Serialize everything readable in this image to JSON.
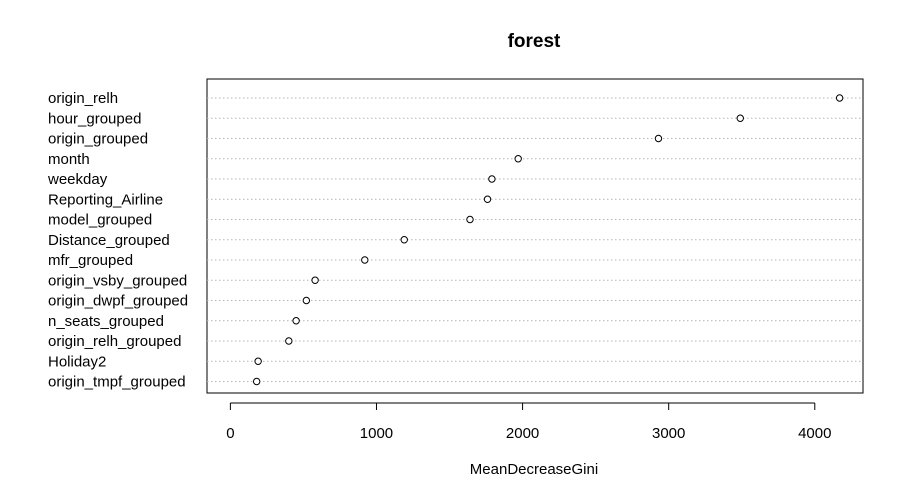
{
  "chart_data": {
    "type": "scatter",
    "title": "forest",
    "xlabel": "MeanDecreaseGini",
    "ylabel": "",
    "xlim": [
      -160,
      4330
    ],
    "xticks": [
      0,
      1000,
      2000,
      3000,
      4000
    ],
    "xtick_labels": [
      "0",
      "1000",
      "2000",
      "3000",
      "4000"
    ],
    "grid": "dotted horizontal guide lines per variable",
    "marker": "open circle",
    "categories": [
      "origin_relh",
      "hour_grouped",
      "origin_grouped",
      "month",
      "weekday",
      "Reporting_Airline",
      "model_grouped",
      "Distance_grouped",
      "mfr_grouped",
      "origin_vsby_grouped",
      "origin_dwpf_grouped",
      "n_seats_grouped",
      "origin_relh_grouped",
      "Holiday2",
      "origin_tmpf_grouped"
    ],
    "values": [
      4170,
      3490,
      2930,
      1970,
      1790,
      1760,
      1640,
      1190,
      920,
      580,
      520,
      450,
      400,
      190,
      180
    ]
  }
}
